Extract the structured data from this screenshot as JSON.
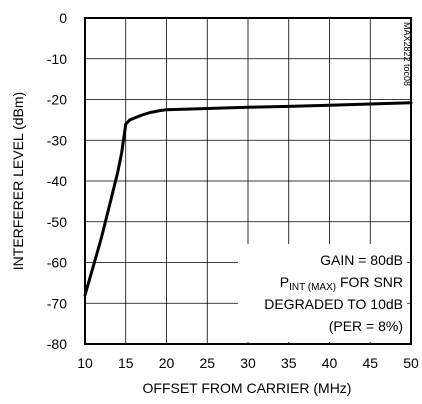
{
  "chart_data": {
    "type": "line",
    "title": "",
    "xlabel": "OFFSET FROM CARRIER (MHz)",
    "ylabel": "INTERFERER LEVEL (dBm)",
    "xlim": [
      10,
      50
    ],
    "ylim": [
      -80,
      0
    ],
    "xticks": [
      10,
      15,
      20,
      25,
      30,
      35,
      40,
      45,
      50
    ],
    "yticks": [
      0,
      -10,
      -20,
      -30,
      -40,
      -50,
      -60,
      -70,
      -80
    ],
    "grid": true,
    "series": [
      {
        "x": [
          10,
          11,
          12,
          13,
          14,
          14.5,
          15,
          15.5,
          16,
          17,
          18,
          19,
          20,
          25,
          30,
          35,
          40,
          45,
          50
        ],
        "y": [
          -68,
          -61,
          -54,
          -46,
          -38,
          -33,
          -26,
          -25,
          -24.6,
          -23.8,
          -23.2,
          -22.8,
          -22.5,
          -22.2,
          -21.9,
          -21.7,
          -21.4,
          -21.1,
          -20.8
        ]
      }
    ],
    "annotation": {
      "line1": "GAIN = 80dB",
      "line2_main": "P",
      "line2_sub": "INT (MAX)",
      "line2_rest": " FOR SNR",
      "line3": "DEGRADED TO 10dB",
      "line4": "(PER = 8%)"
    },
    "watermark": "MAX2822 toc08"
  }
}
